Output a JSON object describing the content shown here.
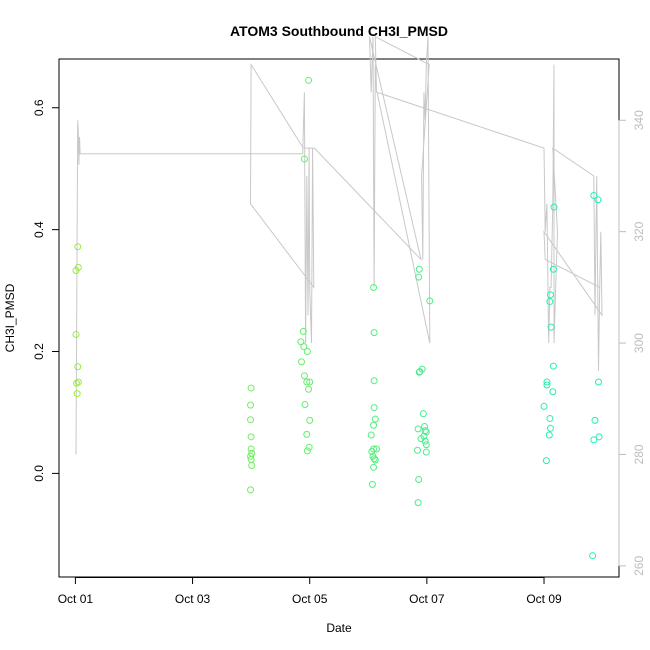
{
  "chart_data": {
    "type": "scatter",
    "title": "ATOM3 Southbound CH3I_PMSD",
    "xlabel": "Date",
    "ylabel": "CH3I_PMSD",
    "x_unit": "days since Oct 01",
    "xlim": [
      -0.28,
      9.28
    ],
    "ylim": [
      -0.17,
      0.68
    ],
    "y2lim": [
      258.0,
      351.0
    ],
    "x_ticks": [
      {
        "value": 0,
        "label": "Oct 01"
      },
      {
        "value": 2,
        "label": "Oct 03"
      },
      {
        "value": 4,
        "label": "Oct 05"
      },
      {
        "value": 6,
        "label": "Oct 07"
      },
      {
        "value": 8,
        "label": "Oct 09"
      }
    ],
    "y_ticks": [
      {
        "value": 0.0,
        "label": "0.0"
      },
      {
        "value": 0.2,
        "label": "0.2"
      },
      {
        "value": 0.4,
        "label": "0.4"
      },
      {
        "value": 0.6,
        "label": "0.6"
      }
    ],
    "y2_ticks": [
      {
        "value": 260,
        "label": "260"
      },
      {
        "value": 280,
        "label": "280"
      },
      {
        "value": 300,
        "label": "300"
      },
      {
        "value": 320,
        "label": "320"
      },
      {
        "value": 340,
        "label": "340"
      }
    ],
    "grid": false,
    "series": [
      {
        "type": "scatter",
        "color_start": "#99ee33",
        "color_end": "#22eebb",
        "points": [
          [
            0.01,
            0.333
          ],
          [
            0.04,
            0.372
          ],
          [
            0.05,
            0.338
          ],
          [
            0.01,
            0.228
          ],
          [
            0.04,
            0.175
          ],
          [
            0.02,
            0.148
          ],
          [
            0.05,
            0.15
          ],
          [
            0.03,
            0.131
          ],
          [
            3.0,
            0.14
          ],
          [
            2.99,
            0.112
          ],
          [
            2.99,
            0.088
          ],
          [
            3.0,
            0.06
          ],
          [
            3.0,
            0.04
          ],
          [
            3.01,
            0.033
          ],
          [
            2.99,
            0.028
          ],
          [
            3.0,
            0.023
          ],
          [
            3.01,
            0.013
          ],
          [
            2.99,
            -0.027
          ],
          [
            3.85,
            0.216
          ],
          [
            3.89,
            0.233
          ],
          [
            3.9,
            0.208
          ],
          [
            3.96,
            0.2
          ],
          [
            3.86,
            0.183
          ],
          [
            3.91,
            0.16
          ],
          [
            3.95,
            0.15
          ],
          [
            4.0,
            0.15
          ],
          [
            3.98,
            0.138
          ],
          [
            3.92,
            0.113
          ],
          [
            4.0,
            0.087
          ],
          [
            3.95,
            0.064
          ],
          [
            3.99,
            0.043
          ],
          [
            3.96,
            0.037
          ],
          [
            3.91,
            0.516
          ],
          [
            3.98,
            0.645
          ],
          [
            5.05,
            0.063
          ],
          [
            5.09,
            0.04
          ],
          [
            5.1,
            0.024
          ],
          [
            5.06,
            0.036
          ],
          [
            5.08,
            0.028
          ],
          [
            5.12,
            0.022
          ],
          [
            5.09,
            0.01
          ],
          [
            5.07,
            -0.018
          ],
          [
            5.1,
            0.108
          ],
          [
            5.12,
            0.089
          ],
          [
            5.09,
            0.079
          ],
          [
            5.1,
            0.152
          ],
          [
            5.1,
            0.231
          ],
          [
            5.09,
            0.305
          ],
          [
            5.14,
            0.04
          ],
          [
            5.85,
            0.073
          ],
          [
            5.9,
            0.057
          ],
          [
            5.95,
            0.061
          ],
          [
            5.97,
            0.053
          ],
          [
            5.99,
            0.047
          ],
          [
            5.94,
            0.098
          ],
          [
            5.96,
            0.077
          ],
          [
            5.97,
            0.07
          ],
          [
            5.99,
            0.068
          ],
          [
            5.99,
            0.035
          ],
          [
            5.87,
            0.166
          ],
          [
            5.88,
            0.167
          ],
          [
            5.92,
            0.171
          ],
          [
            5.84,
            0.038
          ],
          [
            5.86,
            -0.01
          ],
          [
            5.85,
            -0.048
          ],
          [
            5.87,
            0.335
          ],
          [
            5.86,
            0.322
          ],
          [
            6.05,
            0.283
          ],
          [
            8.05,
            0.15
          ],
          [
            8.05,
            0.145
          ],
          [
            8.0,
            0.11
          ],
          [
            8.1,
            0.09
          ],
          [
            8.11,
            0.074
          ],
          [
            8.09,
            0.063
          ],
          [
            8.16,
            0.176
          ],
          [
            8.15,
            0.134
          ],
          [
            8.04,
            0.021
          ],
          [
            8.1,
            0.282
          ],
          [
            8.11,
            0.293
          ],
          [
            8.12,
            0.24
          ],
          [
            8.16,
            0.335
          ],
          [
            8.17,
            0.437
          ],
          [
            8.85,
            0.456
          ],
          [
            8.92,
            0.449
          ],
          [
            8.93,
            0.15
          ],
          [
            8.87,
            0.087
          ],
          [
            8.85,
            0.055
          ],
          [
            8.94,
            0.06
          ],
          [
            8.83,
            -0.135
          ]
        ]
      },
      {
        "type": "line",
        "axis": "right",
        "color": "#c8c8c8",
        "points": [
          [
            0.01,
            280.0
          ],
          [
            0.04,
            340.0
          ],
          [
            0.05,
            338.0
          ],
          [
            0.06,
            332.0
          ],
          [
            0.07,
            337.0
          ],
          [
            0.08,
            334.0
          ],
          [
            3.88,
            334.0
          ],
          [
            3.91,
            345.0
          ],
          [
            3.93,
            300.0
          ],
          [
            3.95,
            330.0
          ],
          [
            3.97,
            305.0
          ],
          [
            3.99,
            335.0
          ],
          [
            4.0,
            310.0
          ],
          [
            4.03,
            300.0
          ],
          [
            4.05,
            335.0
          ],
          [
            4.07,
            310.0
          ],
          [
            2.99,
            325.0
          ],
          [
            3.0,
            350.0
          ],
          [
            3.89,
            335.0
          ],
          [
            3.92,
            335.0
          ],
          [
            4.08,
            335.0
          ],
          [
            5.9,
            315.0
          ],
          [
            5.02,
            355.0
          ],
          [
            5.05,
            345.0
          ],
          [
            5.08,
            355.0
          ],
          [
            5.1,
            310.0
          ],
          [
            5.12,
            350.0
          ],
          [
            5.14,
            345.0
          ],
          [
            5.12,
            355.0
          ],
          [
            6.04,
            350.0
          ],
          [
            5.91,
            330.0
          ],
          [
            5.93,
            315.0
          ],
          [
            5.95,
            345.0
          ],
          [
            5.97,
            340.0
          ],
          [
            5.99,
            350.0
          ],
          [
            6.02,
            355.0
          ],
          [
            6.05,
            300.0
          ],
          [
            5.15,
            345.0
          ],
          [
            8.0,
            335.0
          ],
          [
            8.02,
            320.0
          ],
          [
            8.05,
            325.0
          ],
          [
            8.08,
            300.0
          ],
          [
            8.1,
            310.0
          ],
          [
            8.12,
            310.0
          ],
          [
            8.15,
            325.0
          ],
          [
            8.17,
            350.0
          ],
          [
            8.17,
            300.0
          ],
          [
            8.2,
            310.0
          ],
          [
            8.23,
            320.0
          ],
          [
            8.15,
            335.0
          ],
          [
            8.85,
            330.0
          ],
          [
            8.87,
            305.0
          ],
          [
            8.9,
            330.0
          ],
          [
            8.93,
            295.0
          ],
          [
            8.95,
            310.0
          ],
          [
            8.97,
            320.0
          ],
          [
            8.99,
            305.0
          ],
          [
            8.0,
            320.0
          ],
          [
            8.02,
            315.0
          ],
          [
            8.95,
            310.0
          ]
        ]
      }
    ]
  }
}
